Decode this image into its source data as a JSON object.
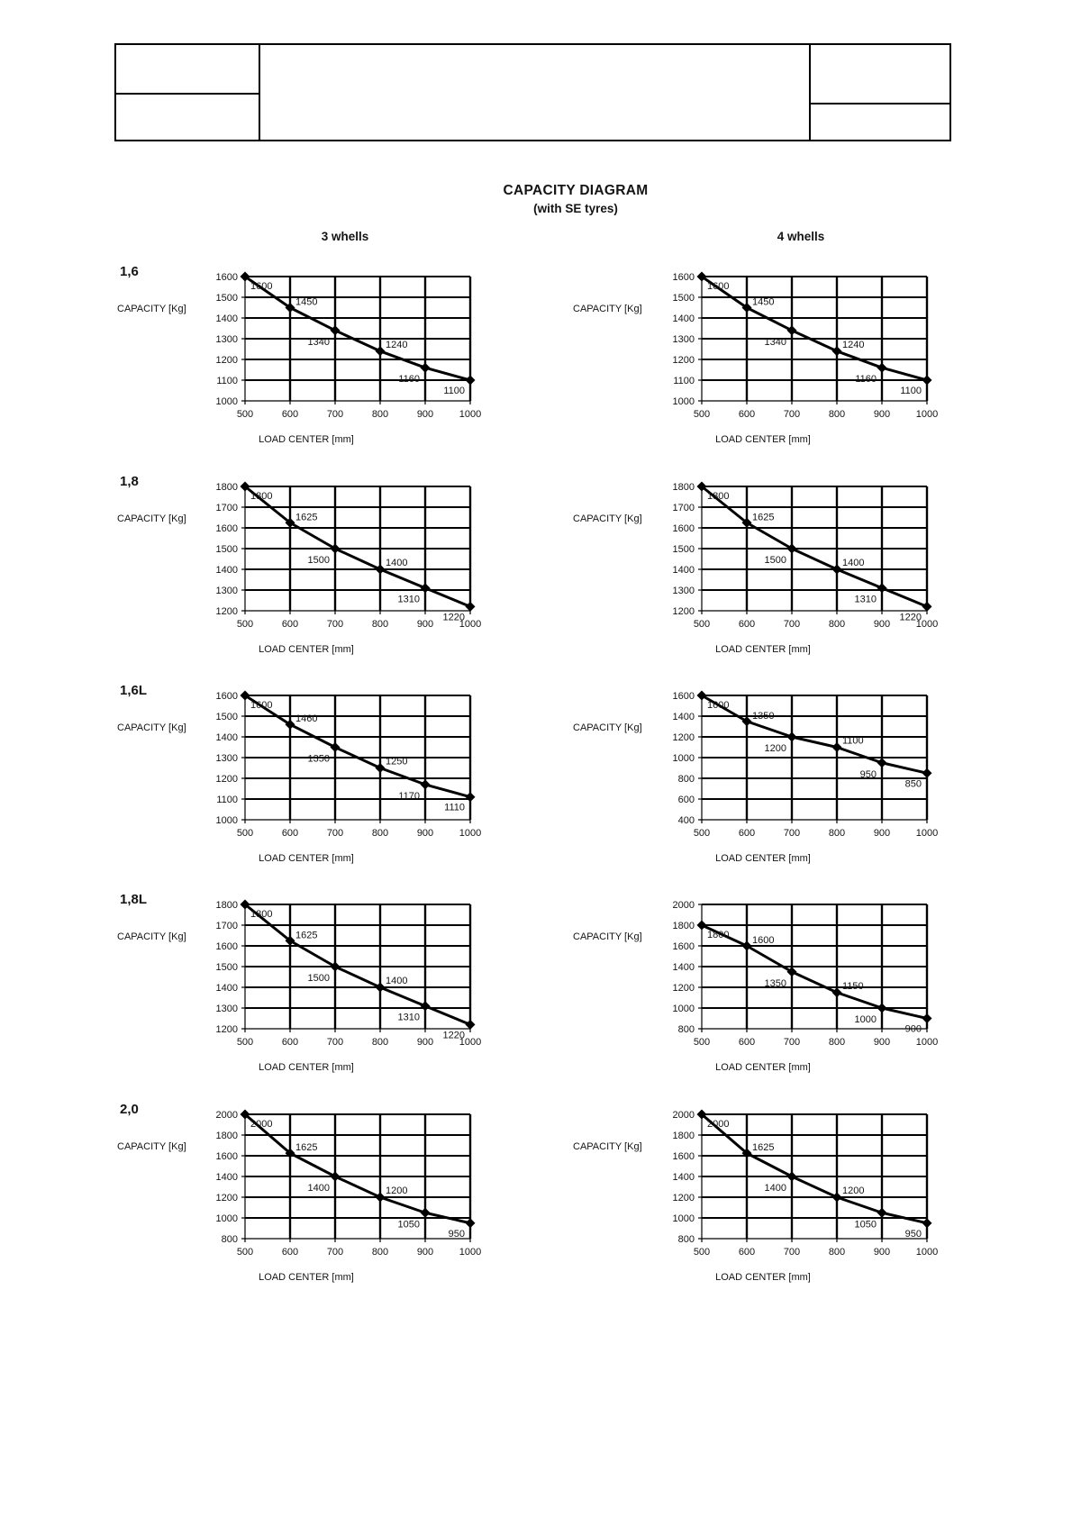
{
  "title": "CAPACITY DIAGRAM",
  "subtitle": "(with SE tyres)",
  "column_headers": [
    "3 whells",
    "4 whells"
  ],
  "header_table": {
    "cell_top_left": "",
    "cell_bottom_left": "",
    "cell_center": "",
    "cell_top_right": "",
    "cell_bottom_right": ""
  },
  "capacity_label": "CAPACITY [Kg]",
  "load_center_label": "LOAD CENTER [mm]",
  "models": [
    "1,6",
    "1,8",
    "1,6L",
    "1,8L",
    "2,0"
  ],
  "chart_data": [
    {
      "type": "line",
      "model": "1,6",
      "wheels": "3 whells",
      "xlabel": "LOAD CENTER [mm]",
      "ylabel": "CAPACITY [Kg]",
      "x": [
        500,
        600,
        700,
        800,
        900,
        1000
      ],
      "values": [
        1600,
        1450,
        1340,
        1240,
        1160,
        1100
      ],
      "xlim": [
        500,
        1000
      ],
      "ylim": [
        1000,
        1600
      ],
      "ytick_step": 100,
      "grid": true
    },
    {
      "type": "line",
      "model": "1,6",
      "wheels": "4 whells",
      "xlabel": "LOAD CENTER [mm]",
      "ylabel": "CAPACITY [Kg]",
      "x": [
        500,
        600,
        700,
        800,
        900,
        1000
      ],
      "values": [
        1600,
        1450,
        1340,
        1240,
        1160,
        1100
      ],
      "xlim": [
        500,
        1000
      ],
      "ylim": [
        1000,
        1600
      ],
      "ytick_step": 100,
      "grid": true
    },
    {
      "type": "line",
      "model": "1,8",
      "wheels": "3 whells",
      "xlabel": "LOAD CENTER [mm]",
      "ylabel": "CAPACITY [Kg]",
      "x": [
        500,
        600,
        700,
        800,
        900,
        1000
      ],
      "values": [
        1800,
        1625,
        1500,
        1400,
        1310,
        1220
      ],
      "xlim": [
        500,
        1000
      ],
      "ylim": [
        1200,
        1800
      ],
      "ytick_step": 100,
      "grid": true
    },
    {
      "type": "line",
      "model": "1,8",
      "wheels": "4 whells",
      "xlabel": "LOAD CENTER [mm]",
      "ylabel": "CAPACITY [Kg]",
      "x": [
        500,
        600,
        700,
        800,
        900,
        1000
      ],
      "values": [
        1800,
        1625,
        1500,
        1400,
        1310,
        1220
      ],
      "xlim": [
        500,
        1000
      ],
      "ylim": [
        1200,
        1800
      ],
      "ytick_step": 100,
      "grid": true
    },
    {
      "type": "line",
      "model": "1,6L",
      "wheels": "3 whells",
      "xlabel": "LOAD CENTER [mm]",
      "ylabel": "CAPACITY [Kg]",
      "x": [
        500,
        600,
        700,
        800,
        900,
        1000
      ],
      "values": [
        1600,
        1460,
        1350,
        1250,
        1170,
        1110
      ],
      "xlim": [
        500,
        1000
      ],
      "ylim": [
        1000,
        1600
      ],
      "ytick_step": 100,
      "grid": true
    },
    {
      "type": "line",
      "model": "1,6L",
      "wheels": "4 whells",
      "xlabel": "LOAD CENTER [mm]",
      "ylabel": "CAPACITY [Kg]",
      "x": [
        500,
        600,
        700,
        800,
        900,
        1000
      ],
      "values": [
        1600,
        1350,
        1200,
        1100,
        950,
        850
      ],
      "xlim": [
        500,
        1000
      ],
      "ylim": [
        400,
        1600
      ],
      "ytick_step": 200,
      "grid": true
    },
    {
      "type": "line",
      "model": "1,8L",
      "wheels": "3 whells",
      "xlabel": "LOAD CENTER [mm]",
      "ylabel": "CAPACITY [Kg]",
      "x": [
        500,
        600,
        700,
        800,
        900,
        1000
      ],
      "values": [
        1800,
        1625,
        1500,
        1400,
        1310,
        1220
      ],
      "xlim": [
        500,
        1000
      ],
      "ylim": [
        1200,
        1800
      ],
      "ytick_step": 100,
      "grid": true
    },
    {
      "type": "line",
      "model": "1,8L",
      "wheels": "4 whells",
      "xlabel": "LOAD CENTER [mm]",
      "ylabel": "CAPACITY [Kg]",
      "x": [
        500,
        600,
        700,
        800,
        900,
        1000
      ],
      "values": [
        1800,
        1600,
        1350,
        1150,
        1000,
        900
      ],
      "xlim": [
        500,
        1000
      ],
      "ylim": [
        800,
        2000
      ],
      "ytick_step": 200,
      "grid": true
    },
    {
      "type": "line",
      "model": "2,0",
      "wheels": "3 whells",
      "xlabel": "LOAD CENTER [mm]",
      "ylabel": "CAPACITY [Kg]",
      "x": [
        500,
        600,
        700,
        800,
        900,
        1000
      ],
      "values": [
        2000,
        1625,
        1400,
        1200,
        1050,
        950
      ],
      "xlim": [
        500,
        1000
      ],
      "ylim": [
        800,
        2000
      ],
      "ytick_step": 200,
      "grid": true
    },
    {
      "type": "line",
      "model": "2,0",
      "wheels": "4 whells",
      "xlabel": "LOAD CENTER [mm]",
      "ylabel": "CAPACITY [Kg]",
      "x": [
        500,
        600,
        700,
        800,
        900,
        1000
      ],
      "values": [
        2000,
        1625,
        1400,
        1200,
        1050,
        950
      ],
      "xlim": [
        500,
        1000
      ],
      "ylim": [
        800,
        2000
      ],
      "ytick_step": 200,
      "grid": true
    }
  ]
}
